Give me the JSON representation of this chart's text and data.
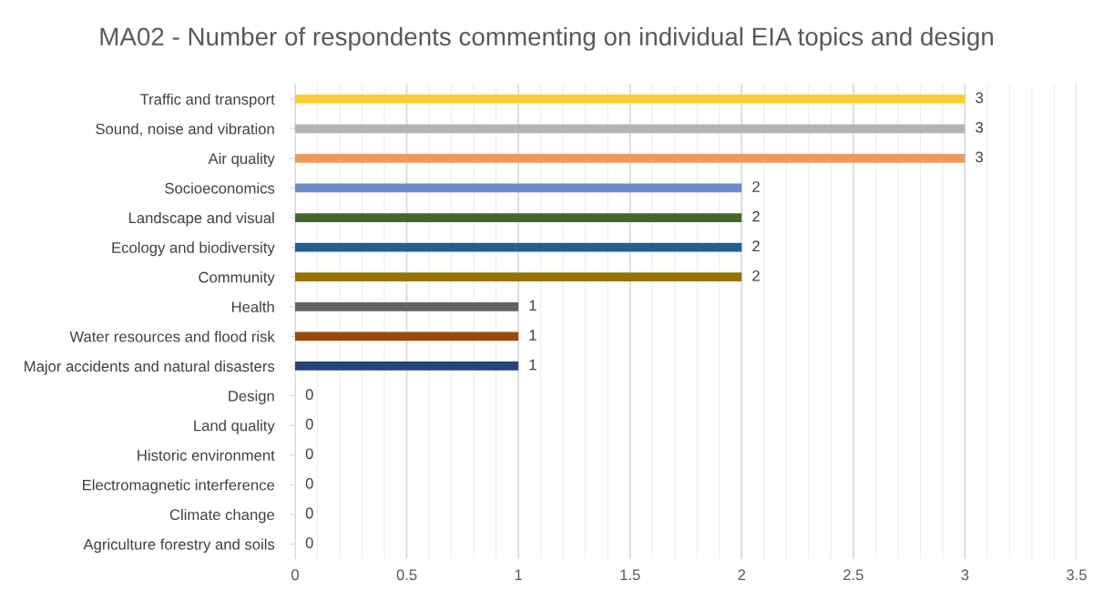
{
  "chart_data": {
    "type": "bar",
    "orientation": "horizontal",
    "title": "MA02 - Number of respondents commenting on individual EIA topics and design",
    "categories": [
      "Traffic and transport",
      "Sound, noise and vibration",
      "Air quality",
      "Socioeconomics",
      "Landscape and visual",
      "Ecology and biodiversity",
      "Community",
      "Health",
      "Water resources and flood risk",
      "Major accidents and natural disasters",
      "Design",
      "Land quality",
      "Historic environment",
      "Electromagnetic interference",
      "Climate change",
      "Agriculture forestry and soils"
    ],
    "values": [
      3,
      3,
      3,
      2,
      2,
      2,
      2,
      1,
      1,
      1,
      0,
      0,
      0,
      0,
      0,
      0
    ],
    "colors": [
      "#fdcb33",
      "#b4b4b4",
      "#ed9b5c",
      "#6a8ccf",
      "#43682b",
      "#255e91",
      "#997300",
      "#636363",
      "#9e480e",
      "#264478",
      "#7cafdd",
      "#f1975a",
      "#b7b7b7",
      "#ffcd33",
      "#698ed0",
      "#8cc168"
    ],
    "xlim": [
      0,
      3.5
    ],
    "xticks": [
      0,
      0.5,
      1,
      1.5,
      2,
      2.5,
      3,
      3.5
    ],
    "grid": "x",
    "data_labels": true
  }
}
